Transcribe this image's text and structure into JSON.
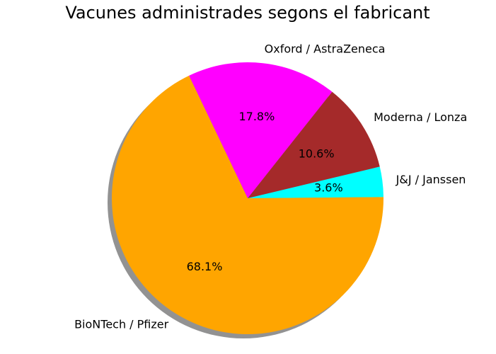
{
  "chart_data": {
    "type": "pie",
    "title": "Vacunes administrades segons el fabricant",
    "slices": [
      {
        "label": "J&J / Janssen",
        "value": 3.6,
        "pct_label": "3.6%",
        "color": "#00ffff"
      },
      {
        "label": "Moderna / Lonza",
        "value": 10.6,
        "pct_label": "10.6%",
        "color": "#a52a2a"
      },
      {
        "label": "Oxford / AstraZeneca",
        "value": 17.8,
        "pct_label": "17.8%",
        "color": "#ff00ff"
      },
      {
        "label": "BioNTech / Pfizer",
        "value": 68.1,
        "pct_label": "68.1%",
        "color": "#ffa500"
      }
    ],
    "shadow": true,
    "legend": "none"
  }
}
